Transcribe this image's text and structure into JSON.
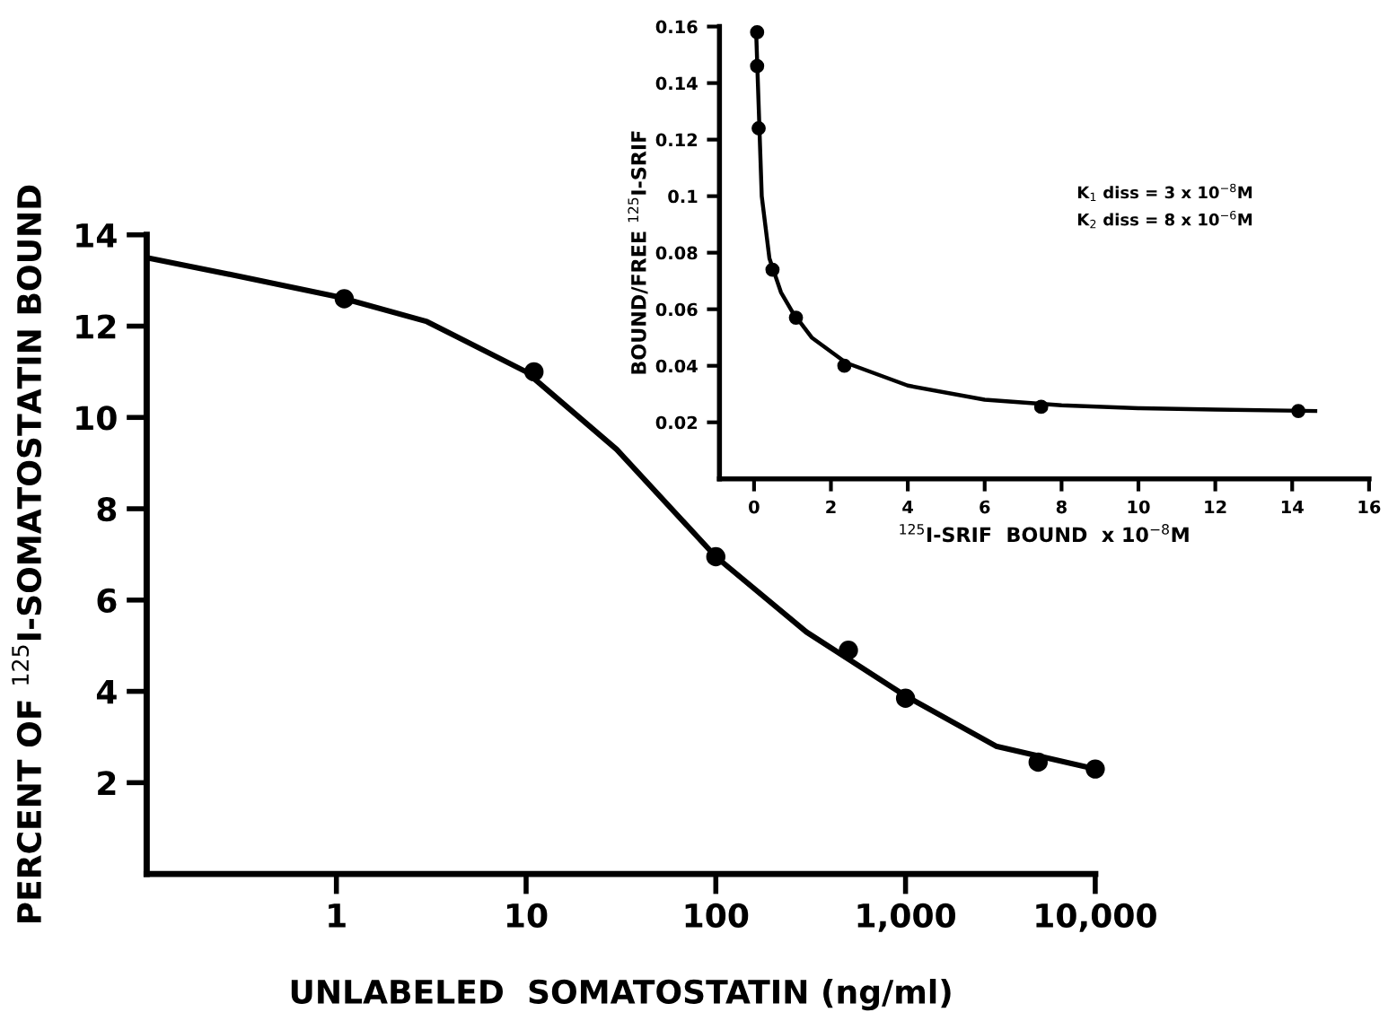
{
  "chart_data": [
    {
      "type": "scatter",
      "xlabel": "UNLABELED  SOMATOSTATIN (ng/ml)",
      "ylabel": "PERCENT OF $^{125}$I-SOMATOSTATIN BOUND",
      "log": "x",
      "xlim": [
        0.1,
        10000
      ],
      "ylim": [
        0,
        14
      ],
      "xticks": [
        1,
        10,
        100,
        {
          "value": 1000,
          "label": "1,000"
        },
        {
          "value": 10000,
          "label": "10,000"
        }
      ],
      "yticks": [
        2,
        4,
        6,
        8,
        10,
        12,
        14
      ],
      "marker": "circle",
      "series": [
        {
          "color": "#000000",
          "x": [
            1.1,
            11,
            100,
            500,
            1000,
            5000,
            10000
          ],
          "values": [
            12.6,
            11.0,
            6.95,
            4.9,
            3.85,
            2.45,
            2.3
          ]
        },
        {
          "type": "line",
          "color": "#000000",
          "marker": "none",
          "line_style": "solid",
          "x": [
            0.1,
            0.3,
            1,
            3,
            10,
            30,
            100,
            300,
            1000,
            3000,
            10000
          ],
          "values": [
            13.5,
            13.1,
            12.65,
            12.1,
            11.0,
            9.3,
            6.95,
            5.3,
            3.9,
            2.8,
            2.3
          ]
        }
      ]
    },
    {
      "type": "scatter",
      "xlabel": "$^{125}$I-SRIF  BOUND  x 10$^{−8}$M",
      "ylabel": "BOUND/FREE $^{125}$I-SRIF",
      "xlim": [
        -0.9,
        16
      ],
      "ylim": [
        0,
        0.16
      ],
      "xticks": [
        0,
        2,
        4,
        6,
        8,
        10,
        12,
        14,
        16
      ],
      "yticks": [
        0.02,
        0.04,
        0.06,
        0.08,
        0.1,
        0.12,
        0.14,
        0.16
      ],
      "marker": "circle",
      "annotations": [
        "K$_{1}$ diss = 3 x 10$^{−8}$M",
        "K$_{2}$ diss = 8 x 10$^{−6}$M"
      ],
      "series": [
        {
          "color": "#000000",
          "x": [
            0.08,
            0.08,
            0.12,
            0.48,
            1.09,
            2.35,
            7.47,
            14.16
          ],
          "values": [
            0.158,
            0.146,
            0.124,
            0.074,
            0.057,
            0.04,
            0.0255,
            0.024
          ]
        },
        {
          "type": "line",
          "color": "#000000",
          "marker": "none",
          "line_style": "solid",
          "x": [
            0.05,
            0.1,
            0.2,
            0.4,
            0.7,
            1,
            1.5,
            2.4,
            4,
            6,
            8,
            10,
            12,
            14.6
          ],
          "values": [
            0.16,
            0.14,
            0.1,
            0.078,
            0.066,
            0.059,
            0.05,
            0.041,
            0.033,
            0.028,
            0.026,
            0.025,
            0.0245,
            0.024
          ]
        }
      ]
    }
  ]
}
